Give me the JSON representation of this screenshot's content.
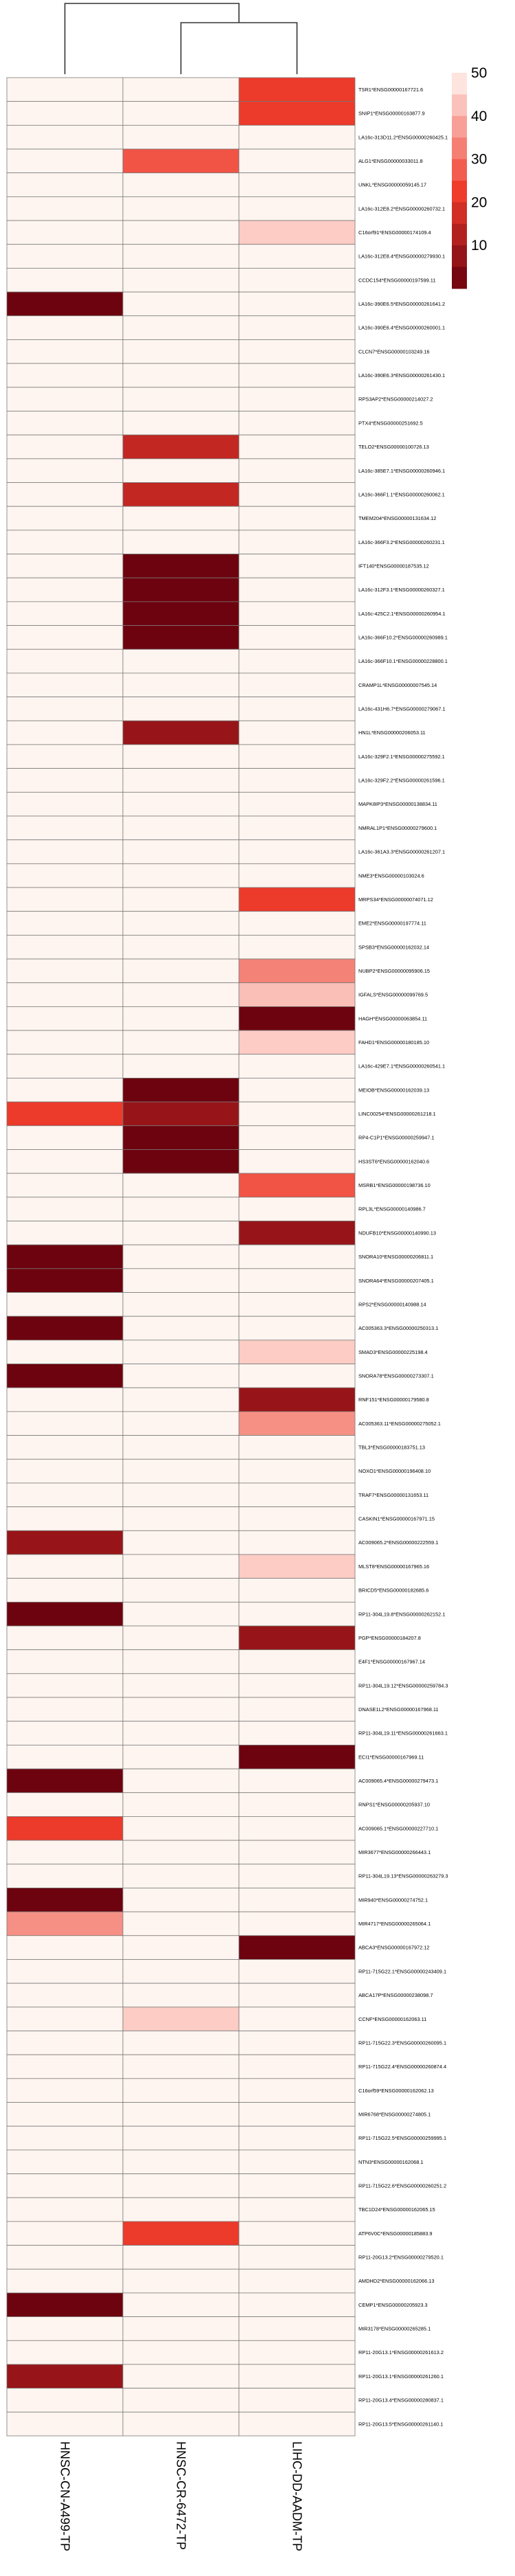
{
  "chart_data": {
    "type": "heatmap",
    "title": "",
    "xlabel": "",
    "ylabel": "",
    "columns": [
      "HNSC-CN-A499-TP",
      "HNSC-CR-6472-TP",
      "LIHC-DD-AADM-TP"
    ],
    "dendrogram": "columns 2 and 3 merge first, then join column 1",
    "color_scale": {
      "low_color": "#67000d",
      "mid_color": "#ef3b2c",
      "high_color": "#fff5f0",
      "range": [
        0,
        50
      ],
      "legend_ticks": [
        50,
        40,
        30,
        20,
        10
      ],
      "legend_position": "top-right"
    },
    "rows": [
      {
        "label": "TSR1*ENSG00000167721.6",
        "values": [
          50,
          50,
          22
        ]
      },
      {
        "label": "SNIP1*ENSG00000163877.9",
        "values": [
          50,
          50,
          22
        ]
      },
      {
        "label": "LA16c-313D11.2*ENSG00000260425.1",
        "values": [
          50,
          50,
          50
        ]
      },
      {
        "label": "ALG1*ENSG00000033011.8",
        "values": [
          50,
          26,
          50
        ]
      },
      {
        "label": "UNKL*ENSG00000059145.17",
        "values": [
          50,
          50,
          50
        ]
      },
      {
        "label": "LA16c-312E8.2*ENSG00000260732.1",
        "values": [
          50,
          50,
          50
        ]
      },
      {
        "label": "C16orf91*ENSG00000174109.4",
        "values": [
          50,
          50,
          44
        ]
      },
      {
        "label": "LA16c-312E8.4*ENSG00000279930.1",
        "values": [
          50,
          50,
          50
        ]
      },
      {
        "label": "CCDC154*ENSG00000197599.11",
        "values": [
          50,
          50,
          50
        ]
      },
      {
        "label": "LA16c-390E6.5*ENSG00000261641.2",
        "values": [
          1,
          50,
          50
        ]
      },
      {
        "label": "LA16c-390E6.4*ENSG00000260001.1",
        "values": [
          50,
          50,
          50
        ]
      },
      {
        "label": "CLCN7*ENSG00000103249.16",
        "values": [
          50,
          50,
          50
        ]
      },
      {
        "label": "LA16c-390E6.3*ENSG00000261430.1",
        "values": [
          50,
          50,
          50
        ]
      },
      {
        "label": "RPS3AP2*ENSG00000214027.2",
        "values": [
          50,
          50,
          50
        ]
      },
      {
        "label": "PTX4*ENSG00000251692.5",
        "values": [
          50,
          50,
          50
        ]
      },
      {
        "label": "TELO2*ENSG00000100726.13",
        "values": [
          50,
          15,
          50
        ]
      },
      {
        "label": "LA16c-385E7.1*ENSG00000260946.1",
        "values": [
          50,
          50,
          50
        ]
      },
      {
        "label": "LA16c-366F1.1*ENSG00000260062.1",
        "values": [
          50,
          15,
          50
        ]
      },
      {
        "label": "TMEM204*ENSG00000131634.12",
        "values": [
          50,
          50,
          50
        ]
      },
      {
        "label": "LA16c-366F3.2*ENSG00000260231.1",
        "values": [
          50,
          50,
          50
        ]
      },
      {
        "label": "IFT140*ENSG00000187535.12",
        "values": [
          50,
          1,
          50
        ]
      },
      {
        "label": "LA16c-312F3.1*ENSG00000260327.1",
        "values": [
          50,
          1,
          50
        ]
      },
      {
        "label": "LA16c-425C2.1*ENSG00000260954.1",
        "values": [
          50,
          1,
          50
        ]
      },
      {
        "label": "LA16c-366F10.2*ENSG00000260989.1",
        "values": [
          50,
          1,
          50
        ]
      },
      {
        "label": "LA16c-366F10.1*ENSG00000228800.1",
        "values": [
          50,
          50,
          50
        ]
      },
      {
        "label": "CRAMP1L*ENSG00000007545.14",
        "values": [
          50,
          50,
          50
        ]
      },
      {
        "label": "LA16c-431H6.7*ENSG00000279067.1",
        "values": [
          50,
          50,
          50
        ]
      },
      {
        "label": "HN1L*ENSG00000206053.11",
        "values": [
          50,
          8,
          50
        ]
      },
      {
        "label": "LA16c-329F2.1*ENSG00000275592.1",
        "values": [
          50,
          50,
          50
        ]
      },
      {
        "label": "LA16c-329F2.2*ENSG00000261596.1",
        "values": [
          50,
          50,
          50
        ]
      },
      {
        "label": "MAPK8IP3*ENSG00000138834.11",
        "values": [
          50,
          50,
          50
        ]
      },
      {
        "label": "NMRAL1P1*ENSG00000279600.1",
        "values": [
          50,
          50,
          50
        ]
      },
      {
        "label": "LA16c-361A3.3*ENSG00000261207.1",
        "values": [
          50,
          50,
          50
        ]
      },
      {
        "label": "NME3*ENSG00000103024.6",
        "values": [
          50,
          50,
          50
        ]
      },
      {
        "label": "MRPS34*ENSG00000074071.12",
        "values": [
          50,
          50,
          22
        ]
      },
      {
        "label": "EME2*ENSG00000197774.11",
        "values": [
          50,
          50,
          50
        ]
      },
      {
        "label": "SPSB3*ENSG00000162032.14",
        "values": [
          50,
          50,
          50
        ]
      },
      {
        "label": "NUBP2*ENSG00000095906.15",
        "values": [
          50,
          50,
          33
        ]
      },
      {
        "label": "IGFALS*ENSG00000099769.5",
        "values": [
          50,
          50,
          42
        ]
      },
      {
        "label": "HAGH*ENSG00000063854.11",
        "values": [
          50,
          50,
          1
        ]
      },
      {
        "label": "FAHD1*ENSG00000180185.10",
        "values": [
          50,
          50,
          44
        ]
      },
      {
        "label": "LA16c-429E7.1*ENSG00000260541.1",
        "values": [
          50,
          50,
          50
        ]
      },
      {
        "label": "MEIOB*ENSG00000162039.13",
        "values": [
          50,
          1,
          50
        ]
      },
      {
        "label": "LINC00254*ENSG00000261218.1",
        "values": [
          22,
          8,
          50
        ]
      },
      {
        "label": "RP4-C1P1*ENSG00000259947.1",
        "values": [
          50,
          1,
          50
        ]
      },
      {
        "label": "HS3ST6*ENSG00000162040.6",
        "values": [
          50,
          1,
          50
        ]
      },
      {
        "label": "MSRB1*ENSG00000198736.10",
        "values": [
          50,
          50,
          26
        ]
      },
      {
        "label": "RPL3L*ENSG00000140986.7",
        "values": [
          50,
          50,
          50
        ]
      },
      {
        "label": "NDUFB10*ENSG00000140990.13",
        "values": [
          50,
          50,
          8
        ]
      },
      {
        "label": "SNORA10*ENSG00000206811.1",
        "values": [
          1,
          50,
          50
        ]
      },
      {
        "label": "SNORA64*ENSG00000207405.1",
        "values": [
          1,
          50,
          50
        ]
      },
      {
        "label": "RPS2*ENSG00000140988.14",
        "values": [
          50,
          50,
          50
        ]
      },
      {
        "label": "AC005363.3*ENSG00000250313.1",
        "values": [
          1,
          50,
          50
        ]
      },
      {
        "label": "SMAD3*ENSG00000225198.4",
        "values": [
          50,
          50,
          44
        ]
      },
      {
        "label": "SNORA78*ENSG00000273307.1",
        "values": [
          1,
          50,
          50
        ]
      },
      {
        "label": "RNF151*ENSG00000179580.8",
        "values": [
          50,
          50,
          8
        ]
      },
      {
        "label": "AC005363.11*ENSG00000275052.1",
        "values": [
          50,
          50,
          35
        ]
      },
      {
        "label": "TBL3*ENSG00000183751.13",
        "values": [
          50,
          50,
          50
        ]
      },
      {
        "label": "NOXO1*ENSG00000196408.10",
        "values": [
          50,
          50,
          50
        ]
      },
      {
        "label": "TRAF7*ENSG00000131653.11",
        "values": [
          50,
          50,
          50
        ]
      },
      {
        "label": "CASKIN1*ENSG00000167971.15",
        "values": [
          50,
          50,
          50
        ]
      },
      {
        "label": "AC009065.2*ENSG00000222559.1",
        "values": [
          8,
          50,
          50
        ]
      },
      {
        "label": "MLST8*ENSG00000167965.16",
        "values": [
          50,
          50,
          44
        ]
      },
      {
        "label": "BRICD5*ENSG00000182685.6",
        "values": [
          50,
          50,
          50
        ]
      },
      {
        "label": "RP11-304L19.8*ENSG00000262152.1",
        "values": [
          1,
          50,
          50
        ]
      },
      {
        "label": "PGP*ENSG00000184207.8",
        "values": [
          50,
          50,
          8
        ]
      },
      {
        "label": "E4F1*ENSG00000167967.14",
        "values": [
          50,
          50,
          50
        ]
      },
      {
        "label": "RP11-304L19.12*ENSG00000259784.3",
        "values": [
          50,
          50,
          50
        ]
      },
      {
        "label": "DNASE1L2*ENSG00000167968.11",
        "values": [
          50,
          50,
          50
        ]
      },
      {
        "label": "RP11-304L19.11*ENSG00000261663.1",
        "values": [
          50,
          50,
          50
        ]
      },
      {
        "label": "ECI1*ENSG00000167969.11",
        "values": [
          50,
          50,
          1
        ]
      },
      {
        "label": "AC009065.4*ENSG00000279473.1",
        "values": [
          1,
          50,
          50
        ]
      },
      {
        "label": "RNPS1*ENSG00000205937.10",
        "values": [
          50,
          50,
          50
        ]
      },
      {
        "label": "AC009065.1*ENSG00000227710.1",
        "values": [
          22,
          50,
          50
        ]
      },
      {
        "label": "MIR3677*ENSG00000266443.1",
        "values": [
          50,
          50,
          50
        ]
      },
      {
        "label": "RP11-304L19.13*ENSG00000263279.3",
        "values": [
          50,
          50,
          50
        ]
      },
      {
        "label": "MIR940*ENSG00000274752.1",
        "values": [
          1,
          50,
          50
        ]
      },
      {
        "label": "MIR4717*ENSG00000265064.1",
        "values": [
          35,
          50,
          50
        ]
      },
      {
        "label": "ABCA3*ENSG00000167972.12",
        "values": [
          50,
          50,
          1
        ]
      },
      {
        "label": "RP11-715G22.1*ENSG00000243409.1",
        "values": [
          50,
          50,
          50
        ]
      },
      {
        "label": "ABCA17P*ENSG00000238098.7",
        "values": [
          50,
          50,
          50
        ]
      },
      {
        "label": "CCNF*ENSG00000162063.11",
        "values": [
          50,
          44,
          50
        ]
      },
      {
        "label": "RP11-715G22.3*ENSG00000260095.1",
        "values": [
          50,
          50,
          50
        ]
      },
      {
        "label": "RP11-715G22.4*ENSG00000260874.4",
        "values": [
          50,
          50,
          50
        ]
      },
      {
        "label": "C16orf59*ENSG00000162062.13",
        "values": [
          50,
          50,
          50
        ]
      },
      {
        "label": "MIR6768*ENSG00000274805.1",
        "values": [
          50,
          50,
          50
        ]
      },
      {
        "label": "RP11-715G22.5*ENSG00000259995.1",
        "values": [
          50,
          50,
          50
        ]
      },
      {
        "label": "NTN3*ENSG00000162068.1",
        "values": [
          50,
          50,
          50
        ]
      },
      {
        "label": "RP11-715G22.6*ENSG00000260251.2",
        "values": [
          50,
          50,
          50
        ]
      },
      {
        "label": "TBC1D24*ENSG00000162065.15",
        "values": [
          50,
          50,
          50
        ]
      },
      {
        "label": "ATP6V0C*ENSG00000185883.9",
        "values": [
          50,
          22,
          50
        ]
      },
      {
        "label": "RP11-20G13.2*ENSG00000279520.1",
        "values": [
          50,
          50,
          50
        ]
      },
      {
        "label": "AMDHD2*ENSG00000162066.13",
        "values": [
          50,
          50,
          50
        ]
      },
      {
        "label": "CEMP1*ENSG00000205923.3",
        "values": [
          1,
          50,
          50
        ]
      },
      {
        "label": "MIR3178*ENSG00000265285.1",
        "values": [
          50,
          50,
          50
        ]
      },
      {
        "label": "RP11-20G13.1*ENSG00000261613.2",
        "values": [
          50,
          50,
          50
        ]
      },
      {
        "label": "RP11-20G13.1*ENSG00000261260.1",
        "values": [
          8,
          50,
          50
        ]
      },
      {
        "label": "RP11-20G13.4*ENSG00000280837.1",
        "values": [
          50,
          50,
          50
        ]
      },
      {
        "label": "RP11-20G13.5*ENSG00000261140.1",
        "values": [
          50,
          50,
          50
        ]
      }
    ]
  }
}
